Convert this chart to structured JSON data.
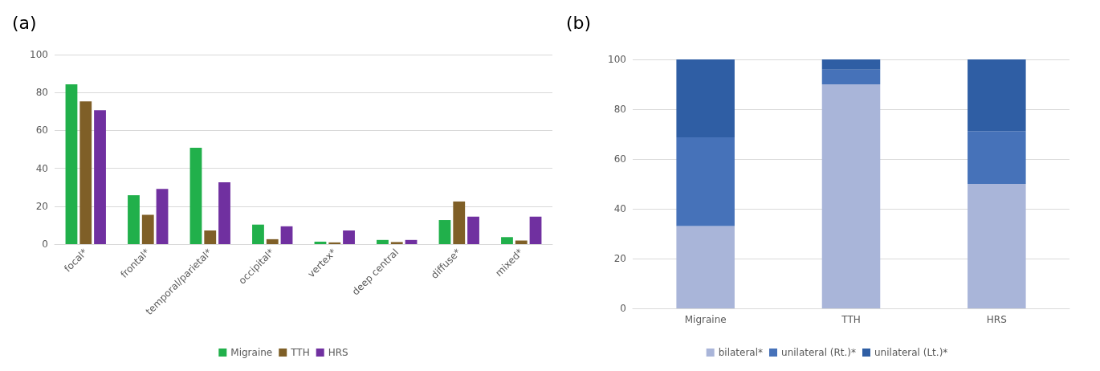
{
  "chart_data": [
    {
      "type": "bar",
      "title": "(a)",
      "categories": [
        "focal*",
        "frontal*",
        "temporal/parietal*",
        "occipital*",
        "vertex*",
        "deep central",
        "diffuse*",
        "mixed*"
      ],
      "series": [
        {
          "name": "Migraine",
          "color": "#21b04b",
          "values": [
            84.3,
            25.8,
            50.8,
            10.3,
            1.3,
            2.2,
            12.7,
            3.7
          ]
        },
        {
          "name": "TTH",
          "color": "#7f5f27",
          "values": [
            75.3,
            15.5,
            7.2,
            2.6,
            0.9,
            1.1,
            22.5,
            1.9
          ]
        },
        {
          "name": "HRS",
          "color": "#7030a0",
          "values": [
            70.7,
            29.1,
            32.6,
            9.4,
            7.2,
            2.2,
            14.5,
            14.5
          ]
        }
      ],
      "ylim": [
        0,
        100
      ],
      "yticks": [
        0,
        20,
        40,
        60,
        80,
        100
      ],
      "grid": "y",
      "legend": "bottom"
    },
    {
      "type": "bar",
      "title": "(b)",
      "stacked": true,
      "categories": [
        "Migraine",
        "TTH",
        "HRS"
      ],
      "series": [
        {
          "name": "bilateral*",
          "color": "#a9b5d9",
          "values": [
            33.1,
            90,
            50
          ]
        },
        {
          "name": "unilateral (Rt.)*",
          "color": "#4672b9",
          "values": [
            35.6,
            5.9,
            21.2
          ]
        },
        {
          "name": "unilateral (Lt.)*",
          "color": "#2f5ea4",
          "values": [
            31.3,
            4.1,
            28.8
          ]
        }
      ],
      "ylim": [
        0,
        100
      ],
      "yticks": [
        0,
        20,
        40,
        60,
        80,
        100
      ],
      "grid": "y",
      "legend": "bottom"
    }
  ]
}
